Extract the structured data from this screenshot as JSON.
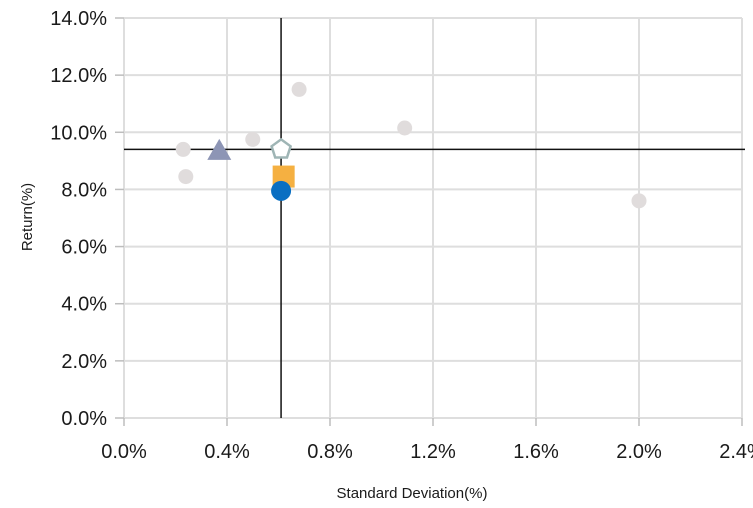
{
  "chart_data": {
    "type": "scatter",
    "title": "",
    "xlabel": "Standard Deviation(%)",
    "ylabel": "Return(%)",
    "xlim": [
      0,
      2.4
    ],
    "ylim": [
      0,
      14
    ],
    "xticks": [
      0,
      0.4,
      0.8,
      1.2,
      1.6,
      2.0,
      2.4
    ],
    "yticks": [
      0,
      2,
      4,
      6,
      8,
      10,
      12,
      14
    ],
    "xtick_labels": [
      "0.0%",
      "0.4%",
      "0.8%",
      "1.2%",
      "1.6%",
      "2.0%",
      "2.4%"
    ],
    "ytick_labels": [
      "0.0%",
      "2.0%",
      "4.0%",
      "6.0%",
      "8.0%",
      "10.0%",
      "12.0%",
      "14.0%"
    ],
    "grid": true,
    "reference_lines": {
      "x": 0.61,
      "y": 9.4,
      "color": "#111111"
    },
    "series": [
      {
        "marker": "circle",
        "color": "#e0dcdc",
        "points": [
          {
            "x": 0.23,
            "y": 9.4
          },
          {
            "x": 0.24,
            "y": 8.45
          },
          {
            "x": 0.5,
            "y": 9.75
          },
          {
            "x": 0.68,
            "y": 11.5
          },
          {
            "x": 1.09,
            "y": 10.15
          },
          {
            "x": 2.0,
            "y": 7.6
          }
        ]
      },
      {
        "marker": "triangle",
        "color": "#8d95b5",
        "points": [
          {
            "x": 0.37,
            "y": 9.35
          }
        ]
      },
      {
        "marker": "pentagon",
        "color": "#ffffff",
        "stroke": "#9fb5b5",
        "points": [
          {
            "x": 0.61,
            "y": 9.4
          }
        ]
      },
      {
        "marker": "square",
        "color": "#f5b041",
        "points": [
          {
            "x": 0.62,
            "y": 8.45
          }
        ]
      },
      {
        "marker": "circle-large",
        "color": "#0a6fc2",
        "points": [
          {
            "x": 0.61,
            "y": 7.95
          }
        ]
      }
    ]
  }
}
